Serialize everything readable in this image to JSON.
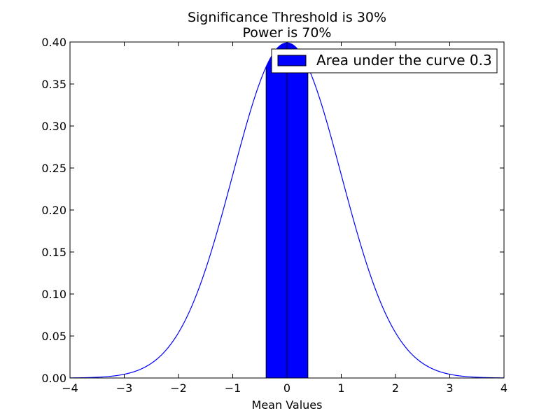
{
  "chart_data": {
    "type": "area",
    "title": "Significance Threshold is 30%",
    "subtitle": "Power is 70%",
    "xlabel": "Mean Values",
    "ylabel": "",
    "xlim": [
      -4,
      4
    ],
    "ylim": [
      0.0,
      0.4
    ],
    "x_ticks": [
      -4,
      -3,
      -2,
      -1,
      0,
      1,
      2,
      3,
      4
    ],
    "x_tick_labels": [
      "−4",
      "−3",
      "−2",
      "−1",
      "0",
      "1",
      "2",
      "3",
      "4"
    ],
    "y_ticks": [
      0.0,
      0.05,
      0.1,
      0.15,
      0.2,
      0.25,
      0.3,
      0.35,
      0.4
    ],
    "y_tick_labels": [
      "0.00",
      "0.05",
      "0.10",
      "0.15",
      "0.20",
      "0.25",
      "0.30",
      "0.35",
      "0.40"
    ],
    "grid": false,
    "legend_position": "top-right",
    "curve": {
      "distribution": "standard normal",
      "mean": 0,
      "std": 1,
      "x": [
        -4.0,
        -3.5,
        -3.0,
        -2.5,
        -2.0,
        -1.5,
        -1.0,
        -0.5,
        0.0,
        0.5,
        1.0,
        1.5,
        2.0,
        2.5,
        3.0,
        3.5,
        4.0
      ],
      "y": [
        0.0001,
        0.0009,
        0.0044,
        0.0175,
        0.054,
        0.1295,
        0.242,
        0.3521,
        0.3989,
        0.3521,
        0.242,
        0.1295,
        0.054,
        0.0175,
        0.0044,
        0.0009,
        0.0001
      ],
      "color": "#0000ff"
    },
    "shaded_region": {
      "x_start": -0.385,
      "x_end": 0.385,
      "area": 0.3,
      "fill": "#0000ff",
      "edge": "#000000",
      "center_line_x": 0
    },
    "legend": [
      {
        "label": "Area under the curve 0.3",
        "color": "#0000ff"
      }
    ]
  }
}
